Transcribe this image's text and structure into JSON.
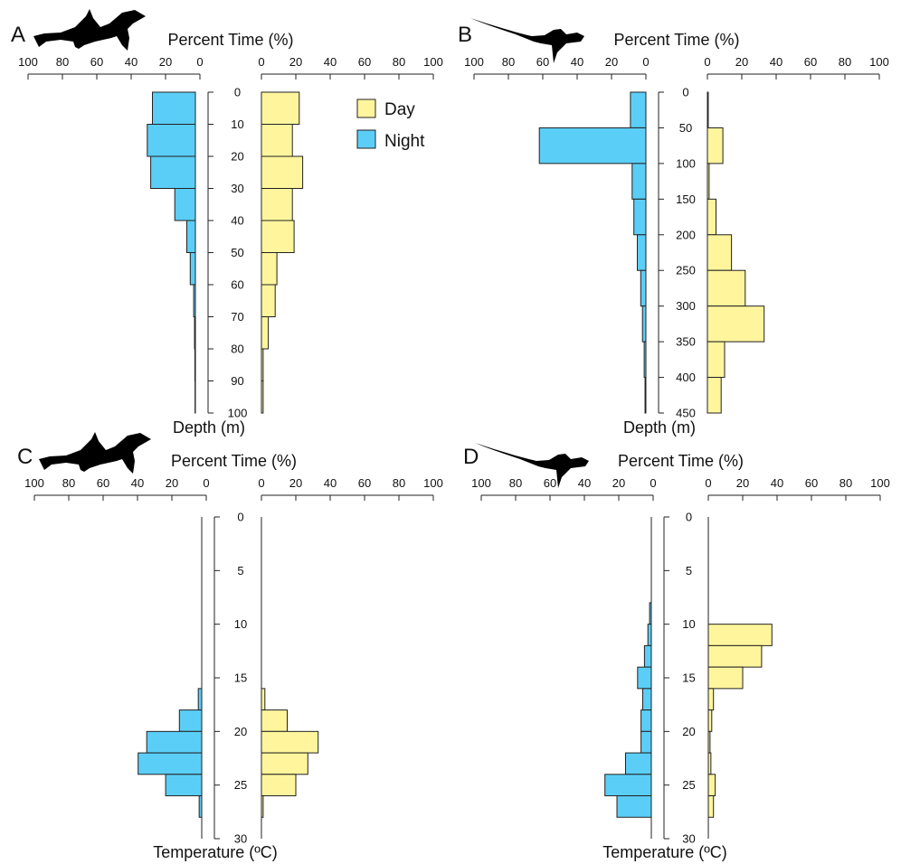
{
  "colors": {
    "day": "#FFF59D",
    "night": "#5BCEF7",
    "stroke": "#222222"
  },
  "legend": {
    "day_label": "Day",
    "night_label": "Night",
    "placement": "top-right of panel A"
  },
  "chart_data": [
    {
      "panel": "A",
      "type": "bar",
      "orientation": "horizontal-back-to-back",
      "icon": "hammerhead-shark-icon",
      "xlabel": "Percent Time (%)",
      "ylabel": "Depth (m)",
      "xlim": [
        0,
        100
      ],
      "xticks": [
        0,
        20,
        40,
        60,
        80,
        100
      ],
      "ylim": [
        0,
        100
      ],
      "yticks": [
        0,
        10,
        20,
        30,
        40,
        50,
        60,
        70,
        80,
        90,
        100
      ],
      "bin_edges": [
        0,
        10,
        20,
        30,
        40,
        50,
        60,
        70,
        80,
        90,
        100
      ],
      "series": [
        {
          "name": "Day",
          "values": [
            22,
            18,
            24,
            18,
            19,
            9,
            8,
            4,
            1,
            1
          ]
        },
        {
          "name": "Night",
          "values": [
            25,
            28,
            26,
            12,
            5,
            3,
            1,
            0.5,
            0.3,
            0.2
          ]
        }
      ]
    },
    {
      "panel": "B",
      "type": "bar",
      "orientation": "horizontal-back-to-back",
      "icon": "thresher-shark-icon",
      "xlabel": "Percent Time (%)",
      "ylabel": "Depth (m)",
      "xlim": [
        0,
        100
      ],
      "xticks": [
        0,
        20,
        40,
        60,
        80,
        100
      ],
      "ylim": [
        0,
        450
      ],
      "yticks": [
        0,
        50,
        100,
        150,
        200,
        250,
        300,
        350,
        400,
        450
      ],
      "bin_edges": [
        0,
        50,
        100,
        150,
        200,
        250,
        300,
        350,
        400,
        450
      ],
      "series": [
        {
          "name": "Day",
          "values": [
            0.5,
            9,
            1,
            5,
            14,
            22,
            33,
            10,
            8
          ]
        },
        {
          "name": "Night",
          "values": [
            9,
            62,
            8,
            7,
            5,
            3,
            2,
            1,
            0.5
          ]
        }
      ]
    },
    {
      "panel": "C",
      "type": "bar",
      "orientation": "horizontal-back-to-back",
      "icon": "hammerhead-shark-icon",
      "xlabel": "Percent Time (%)",
      "ylabel": "Temperature (ºC)",
      "xlim": [
        0,
        100
      ],
      "xticks": [
        0,
        20,
        40,
        60,
        80,
        100
      ],
      "ylim": [
        0,
        30
      ],
      "yticks": [
        0,
        5,
        10,
        15,
        20,
        25,
        30
      ],
      "bin_edges": [
        16,
        18,
        20,
        22,
        24,
        26,
        28
      ],
      "series": [
        {
          "name": "Day",
          "values": [
            2,
            15,
            33,
            27,
            20,
            1
          ]
        },
        {
          "name": "Night",
          "values": [
            2,
            13,
            32,
            37,
            21,
            1.5
          ]
        }
      ]
    },
    {
      "panel": "D",
      "type": "bar",
      "orientation": "horizontal-back-to-back",
      "icon": "thresher-shark-icon",
      "xlabel": "Percent Time (%)",
      "ylabel": "Temperature (ºC)",
      "xlim": [
        0,
        100
      ],
      "xticks": [
        0,
        20,
        40,
        60,
        80,
        100
      ],
      "ylim": [
        0,
        30
      ],
      "yticks": [
        0,
        5,
        10,
        15,
        20,
        25,
        30
      ],
      "bin_edges": [
        8,
        10,
        12,
        14,
        16,
        18,
        20,
        22,
        24,
        26,
        28
      ],
      "series": [
        {
          "name": "Day",
          "values": [
            0,
            37,
            31,
            20,
            3,
            2,
            1,
            1.5,
            4,
            3
          ]
        },
        {
          "name": "Night",
          "values": [
            1,
            2,
            4,
            8,
            5,
            6,
            6,
            15,
            27,
            20
          ]
        }
      ]
    }
  ]
}
